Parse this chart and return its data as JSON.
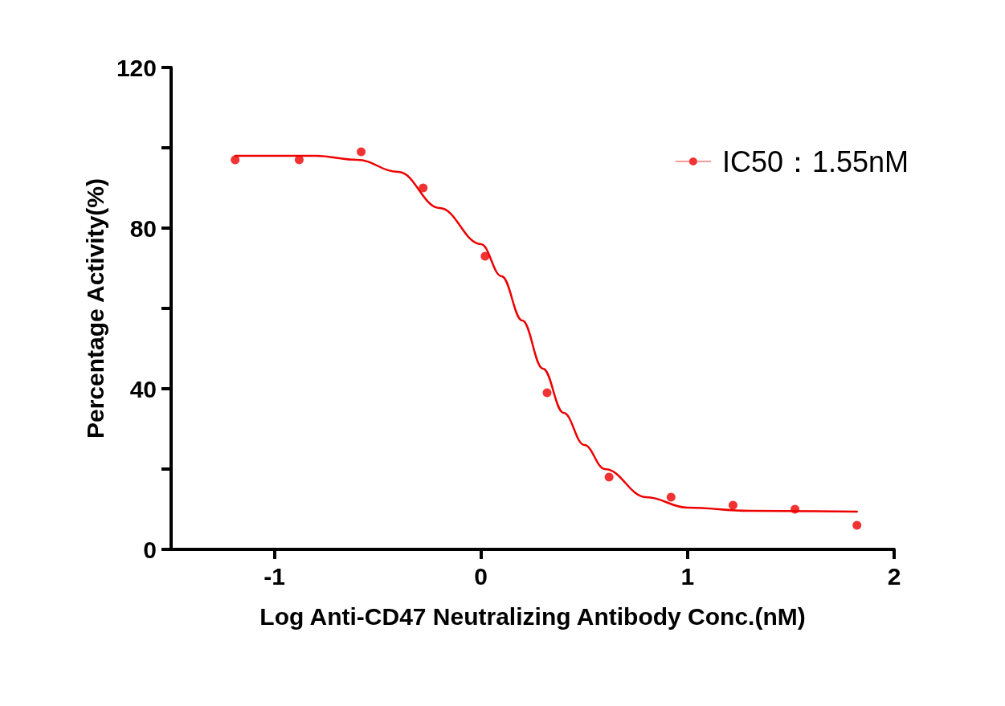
{
  "chart_data": {
    "type": "scatter",
    "xlabel": "Log Anti-CD47 Neutralizing Antibody Conc.(nM)",
    "ylabel": "Percentage Activity(%)",
    "xlim": [
      -1.5,
      2
    ],
    "xticks": [
      -1,
      0,
      1,
      2
    ],
    "ylim": [
      0,
      120
    ],
    "yticks": [
      0,
      {
        "value": 20,
        "label": null
      },
      40,
      {
        "value": 60,
        "label": null
      },
      80,
      {
        "value": 100,
        "label": null
      },
      120
    ],
    "grid": false,
    "legend": "top right",
    "series": [
      {
        "name": "IC50：1.55nM",
        "color": "#ee0000",
        "marker": "circle",
        "x": [
          -1.19,
          -0.88,
          -0.58,
          -0.28,
          0.02,
          0.32,
          0.62,
          0.92,
          1.22,
          1.52,
          1.82
        ],
        "values": [
          97,
          97,
          99,
          90,
          73,
          39,
          18,
          13,
          11,
          10,
          6
        ]
      },
      {
        "color": "#ee0000",
        "type": "line",
        "marker": "none",
        "line_style": "solid",
        "x": [
          -1.19,
          -0.8,
          -0.6,
          -0.4,
          -0.2,
          0,
          0.1,
          0.2,
          0.3,
          0.4,
          0.5,
          0.6,
          0.8,
          1.0,
          1.3,
          1.82
        ],
        "values": [
          98,
          98,
          97,
          94,
          85,
          76,
          68,
          57,
          45,
          34,
          26,
          20,
          13,
          10.4,
          9.6,
          9.4
        ]
      }
    ]
  }
}
